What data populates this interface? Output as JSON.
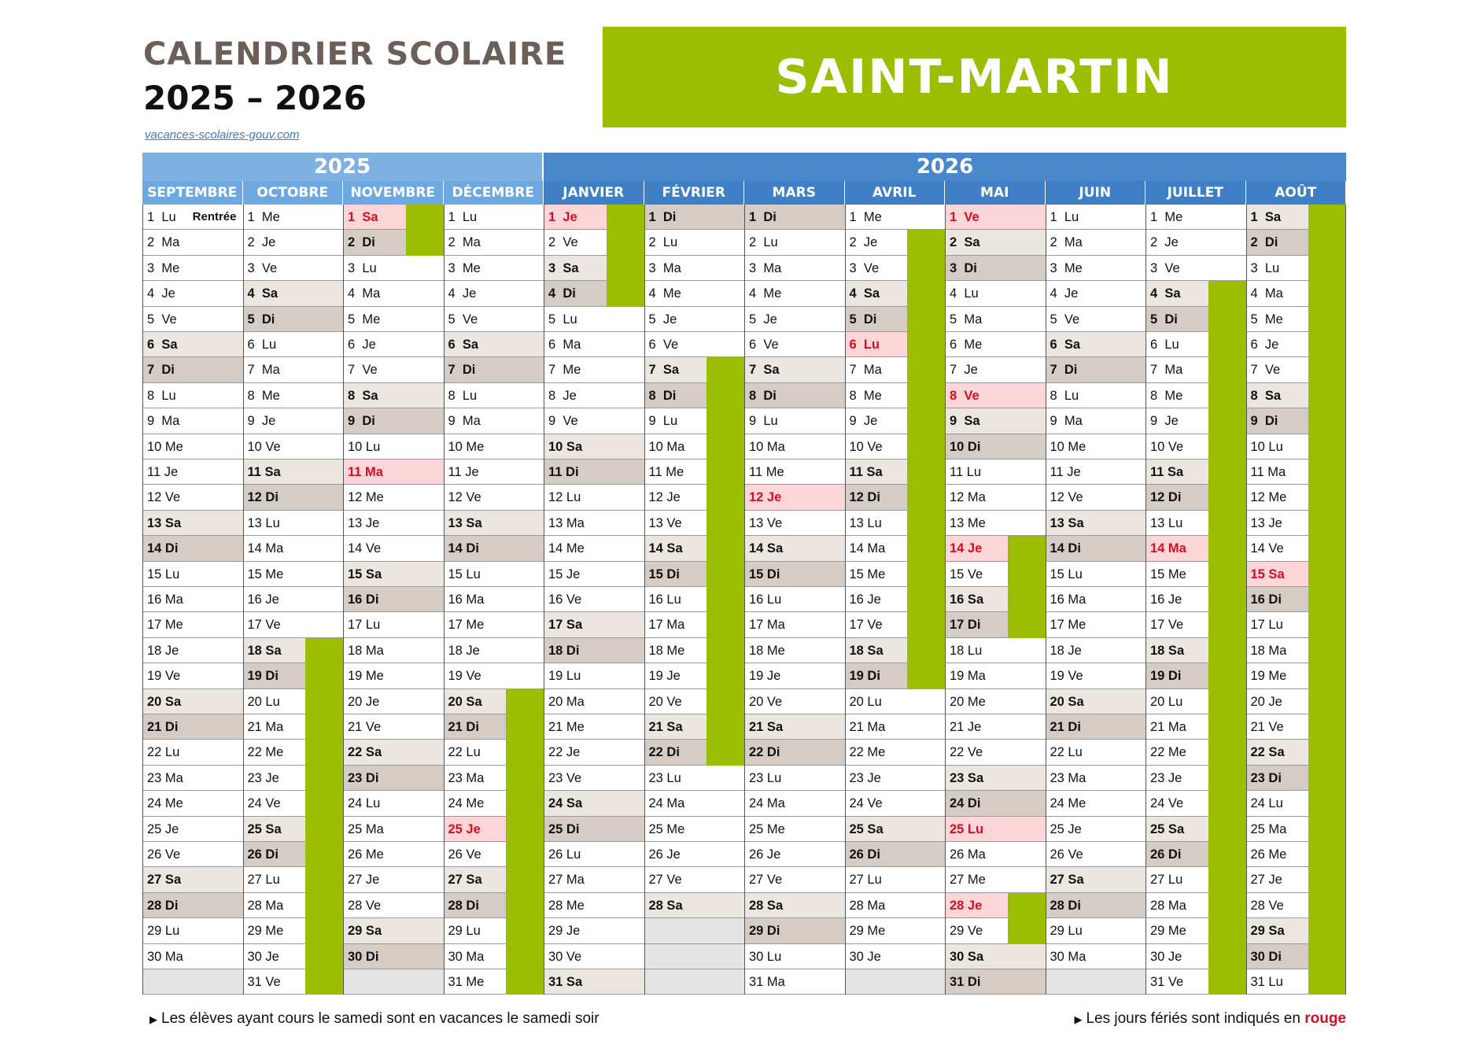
{
  "header": {
    "title_line1": "CALENDRIER SCOLAIRE",
    "title_line2": "2025 – 2026",
    "source_link": "vacances-scolaires-gouv.com"
  },
  "region": {
    "name": "SAINT-MARTIN"
  },
  "colors": {
    "vacation_green": "#9bbf00",
    "year_2025": "#7eb1e2",
    "year_2026": "#4a88cc",
    "month_2025": "#6da9e0",
    "month_2026": "#3f7fc6",
    "saturday_bg": "#ece6e1",
    "sunday_bg": "#d5ccc5",
    "holiday_bg": "#fcd5d8",
    "holiday_text": "#d01020"
  },
  "years": [
    {
      "label": "2025",
      "span_months": 4
    },
    {
      "label": "2026",
      "span_months": 8
    }
  ],
  "months": [
    {
      "name": "SEPTEMBRE",
      "year": 2025,
      "days": 30,
      "start": 0,
      "holidays": [],
      "vacations": [],
      "notes": {
        "1": "Rentrée"
      }
    },
    {
      "name": "OCTOBRE",
      "year": 2025,
      "days": 31,
      "start": 2,
      "holidays": [],
      "vacations": [
        [
          18,
          31
        ]
      ]
    },
    {
      "name": "NOVEMBRE",
      "year": 2025,
      "days": 30,
      "start": 5,
      "holidays": [
        1,
        11
      ],
      "vacations": [
        [
          1,
          2
        ]
      ]
    },
    {
      "name": "DÉCEMBRE",
      "year": 2025,
      "days": 31,
      "start": 0,
      "holidays": [
        25
      ],
      "vacations": [
        [
          20,
          31
        ]
      ]
    },
    {
      "name": "JANVIER",
      "year": 2026,
      "days": 31,
      "start": 3,
      "holidays": [
        1
      ],
      "vacations": [
        [
          1,
          4
        ]
      ]
    },
    {
      "name": "FÉVRIER",
      "year": 2026,
      "days": 28,
      "start": 6,
      "holidays": [],
      "vacations": [
        [
          7,
          22
        ]
      ]
    },
    {
      "name": "MARS",
      "year": 2026,
      "days": 31,
      "start": 6,
      "holidays": [
        12
      ],
      "vacations": []
    },
    {
      "name": "AVRIL",
      "year": 2026,
      "days": 30,
      "start": 2,
      "holidays": [
        6
      ],
      "vacations": [
        [
          2,
          19
        ]
      ]
    },
    {
      "name": "MAI",
      "year": 2026,
      "days": 31,
      "start": 4,
      "holidays": [
        1,
        8,
        14,
        25,
        28
      ],
      "vacations": [
        [
          14,
          17
        ],
        [
          28,
          29
        ]
      ]
    },
    {
      "name": "JUIN",
      "year": 2026,
      "days": 30,
      "start": 0,
      "holidays": [],
      "vacations": []
    },
    {
      "name": "JUILLET",
      "year": 2026,
      "days": 31,
      "start": 2,
      "holidays": [
        14
      ],
      "vacations": [
        [
          4,
          31
        ]
      ]
    },
    {
      "name": "AOÛT",
      "year": 2026,
      "days": 31,
      "start": 5,
      "holidays": [
        15
      ],
      "vacations": [
        [
          1,
          31
        ]
      ]
    }
  ],
  "day_abbr": [
    "Lu",
    "Ma",
    "Me",
    "Je",
    "Ve",
    "Sa",
    "Di"
  ],
  "footer": {
    "left": "Les élèves ayant cours le samedi sont en vacances le samedi soir",
    "right_prefix": "Les jours fériés sont indiqués en",
    "right_red": "rouge"
  }
}
